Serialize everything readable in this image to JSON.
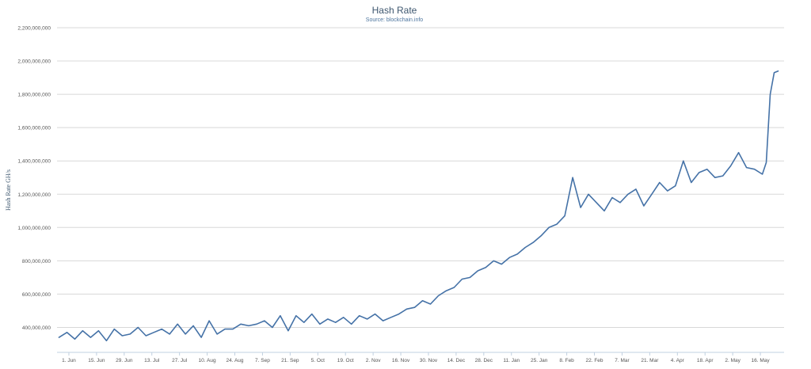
{
  "chart_data": {
    "type": "line",
    "title": "Hash Rate",
    "subtitle": "Source: blockchain.info",
    "ylabel": "Hash Rate GH/s",
    "xlabel": "",
    "ylim": [
      250000000,
      2200000000
    ],
    "yticks": [
      400000000,
      600000000,
      800000000,
      1000000000,
      1200000000,
      1400000000,
      1600000000,
      1800000000,
      2000000000,
      2200000000
    ],
    "ytick_labels": [
      "400,000,000",
      "600,000,000",
      "800,000,000",
      "1,000,000,000",
      "1,200,000,000",
      "1,400,000,000",
      "1,600,000,000",
      "1,800,000,000",
      "2,000,000,000",
      "2,200,000,000"
    ],
    "xlim": [
      "2015-05-26",
      "2016-05-28"
    ],
    "xticks": [
      "2015-06-01",
      "2015-06-15",
      "2015-06-29",
      "2015-07-13",
      "2015-07-27",
      "2015-08-10",
      "2015-08-24",
      "2015-09-07",
      "2015-09-21",
      "2015-10-05",
      "2015-10-19",
      "2015-11-02",
      "2015-11-16",
      "2015-11-30",
      "2015-12-14",
      "2015-12-28",
      "2016-01-11",
      "2016-01-25",
      "2016-02-08",
      "2016-02-22",
      "2016-03-07",
      "2016-03-21",
      "2016-04-04",
      "2016-04-18",
      "2016-05-02",
      "2016-05-16"
    ],
    "xtick_labels": [
      "1. Jun",
      "15. Jun",
      "29. Jun",
      "13. Jul",
      "27. Jul",
      "10. Aug",
      "24. Aug",
      "7. Sep",
      "21. Sep",
      "5. Oct",
      "19. Oct",
      "2. Nov",
      "16. Nov",
      "30. Nov",
      "14. Dec",
      "28. Dec",
      "11. Jan",
      "25. Jan",
      "8. Feb",
      "22. Feb",
      "7. Mar",
      "21. Mar",
      "4. Apr",
      "18. Apr",
      "2. May",
      "16. May"
    ],
    "grid": true,
    "legend": "none",
    "color": "#4572a7",
    "series": [
      {
        "x": [
          "2015-05-27",
          "2015-05-31",
          "2015-06-04",
          "2015-06-08",
          "2015-06-12",
          "2015-06-16",
          "2015-06-20",
          "2015-06-24",
          "2015-06-28",
          "2015-07-02",
          "2015-07-06",
          "2015-07-10",
          "2015-07-14",
          "2015-07-18",
          "2015-07-22",
          "2015-07-26",
          "2015-07-30",
          "2015-08-03",
          "2015-08-07",
          "2015-08-11",
          "2015-08-15",
          "2015-08-19",
          "2015-08-23",
          "2015-08-27",
          "2015-08-31",
          "2015-09-04",
          "2015-09-08",
          "2015-09-12",
          "2015-09-16",
          "2015-09-20",
          "2015-09-24",
          "2015-09-28",
          "2015-10-02",
          "2015-10-06",
          "2015-10-10",
          "2015-10-14",
          "2015-10-18",
          "2015-10-22",
          "2015-10-26",
          "2015-10-30",
          "2015-11-03",
          "2015-11-07",
          "2015-11-11",
          "2015-11-15",
          "2015-11-19",
          "2015-11-23",
          "2015-11-27",
          "2015-12-01",
          "2015-12-05",
          "2015-12-09",
          "2015-12-13",
          "2015-12-17",
          "2015-12-21",
          "2015-12-25",
          "2015-12-29",
          "2016-01-02",
          "2016-01-06",
          "2016-01-10",
          "2016-01-14",
          "2016-01-18",
          "2016-01-22",
          "2016-01-26",
          "2016-01-30",
          "2016-02-03",
          "2016-02-07",
          "2016-02-11",
          "2016-02-15",
          "2016-02-19",
          "2016-02-23",
          "2016-02-27",
          "2016-03-02",
          "2016-03-06",
          "2016-03-10",
          "2016-03-14",
          "2016-03-18",
          "2016-03-22",
          "2016-03-26",
          "2016-03-30",
          "2016-04-03",
          "2016-04-07",
          "2016-04-11",
          "2016-04-15",
          "2016-04-19",
          "2016-04-23",
          "2016-04-27",
          "2016-05-01",
          "2016-05-05",
          "2016-05-09",
          "2016-05-13",
          "2016-05-17",
          "2016-05-19",
          "2016-05-21",
          "2016-05-23",
          "2016-05-25"
        ],
        "values": [
          340000000,
          370000000,
          330000000,
          380000000,
          340000000,
          380000000,
          320000000,
          390000000,
          350000000,
          360000000,
          400000000,
          350000000,
          370000000,
          390000000,
          360000000,
          420000000,
          360000000,
          410000000,
          340000000,
          440000000,
          360000000,
          390000000,
          390000000,
          420000000,
          410000000,
          420000000,
          440000000,
          400000000,
          470000000,
          380000000,
          470000000,
          430000000,
          480000000,
          420000000,
          450000000,
          430000000,
          460000000,
          420000000,
          470000000,
          450000000,
          480000000,
          440000000,
          460000000,
          480000000,
          510000000,
          520000000,
          560000000,
          540000000,
          590000000,
          620000000,
          640000000,
          690000000,
          700000000,
          740000000,
          760000000,
          800000000,
          780000000,
          820000000,
          840000000,
          880000000,
          910000000,
          950000000,
          1000000000,
          1020000000,
          1070000000,
          1300000000,
          1120000000,
          1200000000,
          1150000000,
          1100000000,
          1180000000,
          1150000000,
          1200000000,
          1230000000,
          1130000000,
          1200000000,
          1270000000,
          1220000000,
          1250000000,
          1400000000,
          1270000000,
          1330000000,
          1350000000,
          1300000000,
          1310000000,
          1370000000,
          1450000000,
          1360000000,
          1350000000,
          1320000000,
          1390000000,
          1800000000,
          1930000000,
          1940000000
        ]
      }
    ]
  }
}
